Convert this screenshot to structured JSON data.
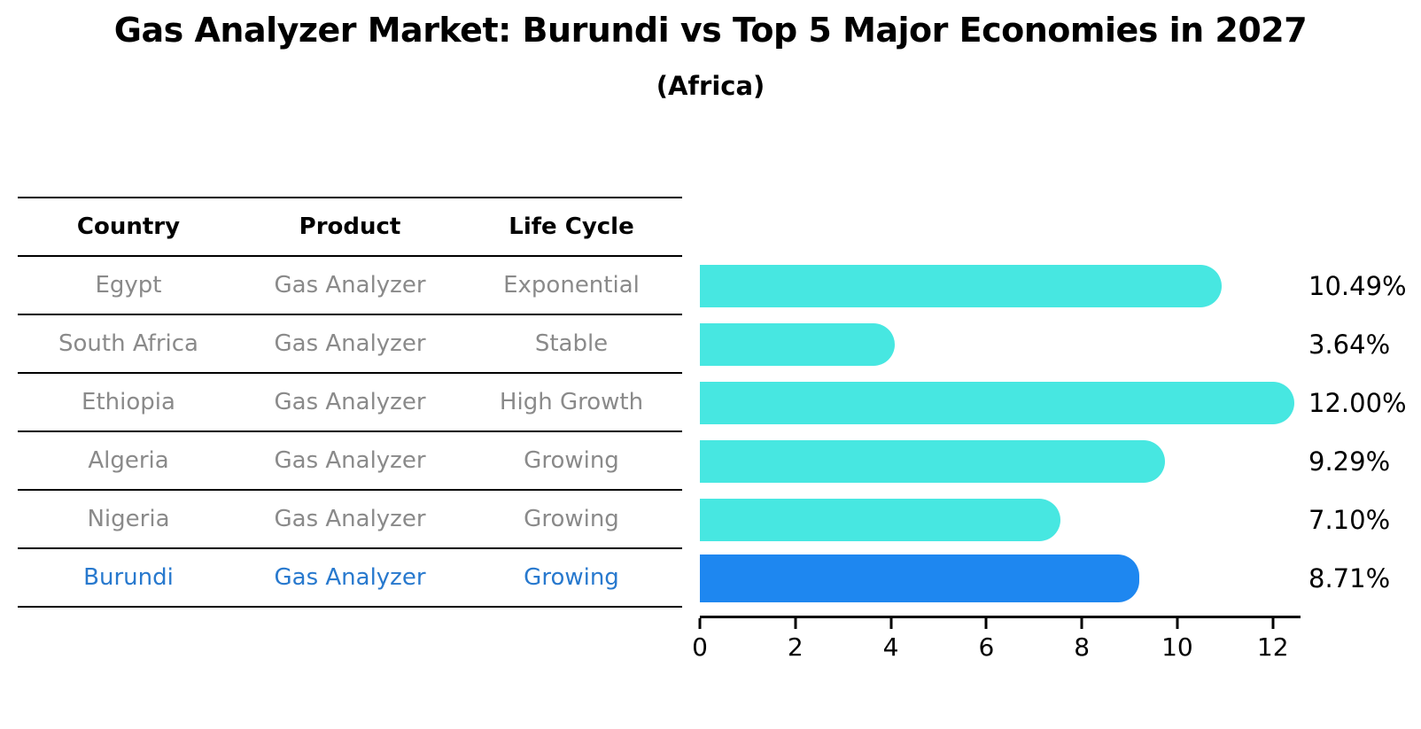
{
  "title": "Gas Analyzer Market: Burundi vs Top 5 Major Economies in 2027",
  "subtitle": "(Africa)",
  "table": {
    "headers": [
      "Country",
      "Product",
      "Life Cycle"
    ],
    "rows": [
      {
        "cells": [
          "Egypt",
          "Gas Analyzer",
          "Exponential"
        ],
        "highlight": false
      },
      {
        "cells": [
          "South Africa",
          "Gas Analyzer",
          "Stable"
        ],
        "highlight": false
      },
      {
        "cells": [
          "Ethiopia",
          "Gas Analyzer",
          "High Growth"
        ],
        "highlight": false
      },
      {
        "cells": [
          "Algeria",
          "Gas Analyzer",
          "Growing"
        ],
        "highlight": false
      },
      {
        "cells": [
          "Nigeria",
          "Gas Analyzer",
          "Growing"
        ],
        "highlight": false
      },
      {
        "cells": [
          "Burundi",
          "Gas Analyzer",
          "Growing"
        ],
        "highlight": true
      }
    ]
  },
  "chart_data": {
    "type": "bar",
    "orientation": "horizontal",
    "categories": [
      "Egypt",
      "South Africa",
      "Ethiopia",
      "Algeria",
      "Nigeria",
      "Burundi"
    ],
    "values": [
      10.49,
      3.64,
      12.0,
      9.29,
      7.1,
      8.71
    ],
    "value_labels": [
      "10.49%",
      "3.64%",
      "12.00%",
      "9.29%",
      "7.10%",
      "8.71%"
    ],
    "highlight_index": 5,
    "xlim": [
      0,
      12.58
    ],
    "xticks": [
      0,
      2,
      4,
      6,
      8,
      10,
      12
    ],
    "grid": false,
    "legend": false
  },
  "colors": {
    "bar": "#47E7E1",
    "highlight_bar": "#1E87F0",
    "highlight_text": "#2879CE",
    "row_text": "#8a8a8a",
    "header_text": "#000000",
    "axis": "#000000"
  }
}
